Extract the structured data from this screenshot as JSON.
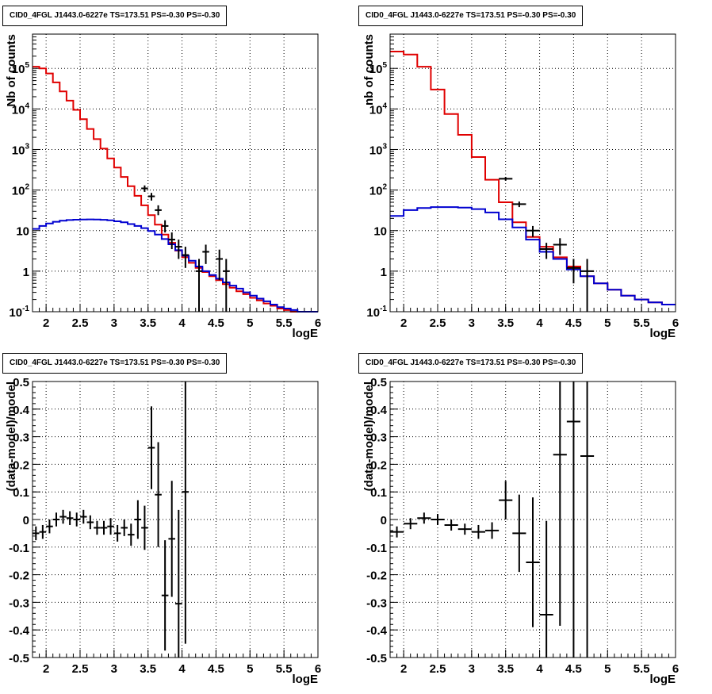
{
  "chart_data": [
    {
      "type": "line",
      "title": "CID0_4FGL J1443.0-6227e TS=173.51 PS=-0.30 PS=-0.30",
      "xlabel": "logE",
      "ylabel": "Nb of counts",
      "xlim": [
        1.8,
        6.0
      ],
      "ylim": [
        0.1,
        700000
      ],
      "ylog": true,
      "grid": true,
      "x_ticks": [
        "2",
        "2.5",
        "3",
        "3.5",
        "4",
        "4.5",
        "5",
        "5.5",
        "6"
      ],
      "y_ticks": [
        "10^-1",
        "1",
        "10",
        "10^2",
        "10^3",
        "10^4",
        "10^5"
      ],
      "bin_edges": [
        1.8,
        1.9,
        2.0,
        2.1,
        2.2,
        2.3,
        2.4,
        2.5,
        2.6,
        2.7,
        2.8,
        2.9,
        3.0,
        3.1,
        3.2,
        3.3,
        3.4,
        3.5,
        3.6,
        3.7,
        3.8,
        3.9,
        4.0,
        4.1,
        4.2,
        4.3,
        4.4,
        4.5,
        4.6,
        4.7,
        4.8,
        4.9,
        5.0,
        5.1,
        5.2,
        5.3,
        5.4,
        5.5,
        5.6,
        5.7,
        5.8,
        5.9,
        6.0
      ],
      "series": [
        {
          "color": "#e00000",
          "style": "step",
          "values": [
            110000,
            100000,
            75000,
            45000,
            27000,
            16000,
            9500,
            5600,
            3200,
            1800,
            1050,
            600,
            360,
            210,
            125,
            72,
            42,
            24,
            14,
            8,
            5,
            3.2,
            2.2,
            1.6,
            1.2,
            0.95,
            0.75,
            0.6,
            0.48,
            0.39,
            0.32,
            0.27,
            0.22,
            0.19,
            0.16,
            0.14,
            0.12,
            0.11,
            0.1,
            0.1,
            0.1,
            0.1
          ]
        },
        {
          "color": "#0000d0",
          "style": "step",
          "values": [
            11,
            13,
            15,
            16.5,
            17.5,
            18.2,
            18.6,
            18.8,
            18.9,
            18.8,
            18.5,
            18,
            17,
            16,
            14.5,
            13,
            11.5,
            9.8,
            8,
            6.2,
            4.6,
            3.3,
            2.4,
            1.8,
            1.3,
            1,
            0.8,
            0.65,
            0.53,
            0.44,
            0.37,
            0.3,
            0.25,
            0.21,
            0.18,
            0.15,
            0.13,
            0.12,
            0.11,
            0.1,
            0.1,
            0.1
          ]
        },
        {
          "color": "#000000",
          "style": "points",
          "points": [
            {
              "x": 3.45,
              "y": 110,
              "ylo": 90,
              "yhi": 130
            },
            {
              "x": 3.55,
              "y": 70,
              "ylo": 55,
              "yhi": 85
            },
            {
              "x": 3.65,
              "y": 32,
              "ylo": 24,
              "yhi": 42
            },
            {
              "x": 3.75,
              "y": 13,
              "ylo": 9,
              "yhi": 18
            },
            {
              "x": 3.85,
              "y": 6,
              "ylo": 3.5,
              "yhi": 9
            },
            {
              "x": 3.95,
              "y": 4,
              "ylo": 2,
              "yhi": 6
            },
            {
              "x": 4.05,
              "y": 2.5,
              "ylo": 1.2,
              "yhi": 4
            },
            {
              "x": 4.25,
              "y": 1,
              "ylo": 0.1,
              "yhi": 2
            },
            {
              "x": 4.35,
              "y": 3,
              "ylo": 1.5,
              "yhi": 4.5
            },
            {
              "x": 4.55,
              "y": 2,
              "ylo": 0.6,
              "yhi": 3.4
            },
            {
              "x": 4.65,
              "y": 1,
              "ylo": 0.1,
              "yhi": 2
            }
          ]
        }
      ]
    },
    {
      "type": "line",
      "title": "CID0_4FGL J1443.0-6227e TS=173.51 PS=-0.30 PS=-0.30",
      "xlabel": "logE",
      "ylabel": "nb of counts",
      "xlim": [
        1.8,
        6.0
      ],
      "ylim": [
        0.1,
        700000
      ],
      "ylog": true,
      "grid": true,
      "x_ticks": [
        "2",
        "2.5",
        "3",
        "3.5",
        "4",
        "4.5",
        "5",
        "5.5",
        "6"
      ],
      "y_ticks": [
        "10^-1",
        "1",
        "10",
        "10^2",
        "10^3",
        "10^4",
        "10^5"
      ],
      "bin_edges": [
        1.8,
        2.0,
        2.2,
        2.4,
        2.6,
        2.8,
        3.0,
        3.2,
        3.4,
        3.6,
        3.8,
        4.0,
        4.2,
        4.4,
        4.6,
        4.8,
        5.0,
        5.2,
        5.4,
        5.6,
        5.8,
        6.0
      ],
      "series": [
        {
          "color": "#e00000",
          "style": "step",
          "values": [
            260000,
            220000,
            110000,
            30000,
            7500,
            2300,
            650,
            180,
            50,
            16,
            7,
            4,
            2.2,
            1.3,
            0.75,
            0.5,
            0.35,
            0.25,
            0.2,
            0.17,
            0.15
          ]
        },
        {
          "color": "#0000d0",
          "style": "step",
          "values": [
            23,
            32,
            36,
            38,
            38,
            37,
            34,
            28,
            19,
            12,
            6,
            3,
            2,
            1.1,
            0.75,
            0.5,
            0.35,
            0.25,
            0.2,
            0.17,
            0.15
          ]
        },
        {
          "color": "#000000",
          "style": "points",
          "points": [
            {
              "x": 3.5,
              "y": 190,
              "ylo": 170,
              "yhi": 210
            },
            {
              "x": 3.7,
              "y": 45,
              "ylo": 38,
              "yhi": 52
            },
            {
              "x": 3.9,
              "y": 10,
              "ylo": 7,
              "yhi": 13
            },
            {
              "x": 4.1,
              "y": 3.5,
              "ylo": 2,
              "yhi": 5
            },
            {
              "x": 4.3,
              "y": 4.5,
              "ylo": 2.5,
              "yhi": 6.5
            },
            {
              "x": 4.5,
              "y": 1.2,
              "ylo": 0.5,
              "yhi": 2
            },
            {
              "x": 4.7,
              "y": 1,
              "ylo": 0.1,
              "yhi": 2
            }
          ]
        }
      ]
    },
    {
      "type": "scatter",
      "title": "CID0_4FGL J1443.0-6227e TS=173.51 PS=-0.30 PS=-0.30",
      "xlabel": "logE",
      "ylabel": "(data-model)/model",
      "xlim": [
        1.8,
        6.0
      ],
      "ylim": [
        -0.5,
        0.5
      ],
      "grid": true,
      "x_ticks": [
        "2",
        "2.5",
        "3",
        "3.5",
        "4",
        "4.5",
        "5",
        "5.5",
        "6"
      ],
      "y_ticks": [
        "-0.5",
        "-0.4",
        "-0.3",
        "-0.2",
        "-0.1",
        "0",
        "0.1",
        "0.2",
        "0.3",
        "0.4",
        "0.5"
      ],
      "xerr": 0.05,
      "points": [
        {
          "x": 1.85,
          "y": -0.05,
          "err": 0.025
        },
        {
          "x": 1.95,
          "y": -0.045,
          "err": 0.025
        },
        {
          "x": 2.05,
          "y": -0.025,
          "err": 0.025
        },
        {
          "x": 2.15,
          "y": 0.0,
          "err": 0.025
        },
        {
          "x": 2.25,
          "y": 0.01,
          "err": 0.025
        },
        {
          "x": 2.35,
          "y": 0.005,
          "err": 0.025
        },
        {
          "x": 2.45,
          "y": 0.0,
          "err": 0.025
        },
        {
          "x": 2.55,
          "y": 0.01,
          "err": 0.025
        },
        {
          "x": 2.65,
          "y": -0.01,
          "err": 0.025
        },
        {
          "x": 2.75,
          "y": -0.03,
          "err": 0.025
        },
        {
          "x": 2.85,
          "y": -0.03,
          "err": 0.025
        },
        {
          "x": 2.95,
          "y": -0.025,
          "err": 0.03
        },
        {
          "x": 3.05,
          "y": -0.05,
          "err": 0.03
        },
        {
          "x": 3.15,
          "y": -0.03,
          "err": 0.03
        },
        {
          "x": 3.25,
          "y": -0.055,
          "err": 0.04
        },
        {
          "x": 3.35,
          "y": 0.0,
          "err": 0.07
        },
        {
          "x": 3.45,
          "y": -0.03,
          "err": 0.08
        },
        {
          "x": 3.55,
          "y": 0.26,
          "err": 0.15
        },
        {
          "x": 3.65,
          "y": 0.09,
          "err": 0.19
        },
        {
          "x": 3.75,
          "y": -0.275,
          "err": 0.2
        },
        {
          "x": 3.85,
          "y": -0.07,
          "err": 0.21
        },
        {
          "x": 3.95,
          "y": -0.305,
          "err": 0.34
        },
        {
          "x": 4.05,
          "y": 0.1,
          "err": 0.55
        }
      ]
    },
    {
      "type": "scatter",
      "title": "CID0_4FGL J1443.0-6227e TS=173.51 PS=-0.30 PS=-0.30",
      "xlabel": "logE",
      "ylabel": "(data-model)/model",
      "xlim": [
        1.8,
        6.0
      ],
      "ylim": [
        -0.5,
        0.5
      ],
      "grid": true,
      "x_ticks": [
        "2",
        "2.5",
        "3",
        "3.5",
        "4",
        "4.5",
        "5",
        "5.5",
        "6"
      ],
      "y_ticks": [
        "-0.5",
        "-0.4",
        "-0.3",
        "-0.2",
        "-0.1",
        "0",
        "0.1",
        "0.2",
        "0.3",
        "0.4",
        "0.5"
      ],
      "xerr": 0.1,
      "points": [
        {
          "x": 1.9,
          "y": -0.045,
          "err": 0.02
        },
        {
          "x": 2.1,
          "y": -0.015,
          "err": 0.02
        },
        {
          "x": 2.3,
          "y": 0.005,
          "err": 0.02
        },
        {
          "x": 2.5,
          "y": 0.0,
          "err": 0.02
        },
        {
          "x": 2.7,
          "y": -0.02,
          "err": 0.02
        },
        {
          "x": 2.9,
          "y": -0.035,
          "err": 0.02
        },
        {
          "x": 3.1,
          "y": -0.045,
          "err": 0.025
        },
        {
          "x": 3.3,
          "y": -0.04,
          "err": 0.03
        },
        {
          "x": 3.5,
          "y": 0.07,
          "err": 0.07
        },
        {
          "x": 3.7,
          "y": -0.05,
          "err": 0.14
        },
        {
          "x": 3.9,
          "y": -0.155,
          "err": 0.235
        },
        {
          "x": 4.1,
          "y": -0.345,
          "err": 0.34
        },
        {
          "x": 4.3,
          "y": 0.235,
          "err": 0.62
        },
        {
          "x": 4.5,
          "y": 0.355,
          "err": 0.9
        },
        {
          "x": 4.7,
          "y": 0.23,
          "err": 0.9
        }
      ]
    }
  ]
}
